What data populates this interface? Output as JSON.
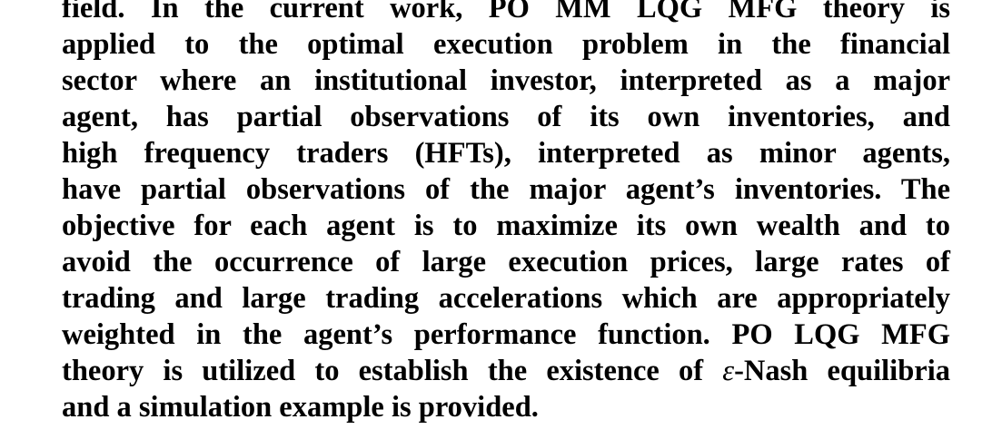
{
  "abstract": {
    "lines": [
      "field. In the current work, PO MM LQG MFG theory is",
      "applied to the optimal execution problem in the financial",
      "sector where an institutional investor, interpreted as a major",
      "agent, has partial observations of its own inventories, and",
      "high frequency traders (HFTs), interpreted as minor agents,",
      "have partial observations of the major agent’s inventories. The",
      "objective for each agent is to maximize its own wealth and to",
      "avoid the occurrence of large execution prices, large rates of",
      "trading and large trading accelerations which are appropriately",
      "weighted in the agent’s performance function. PO LQG MFG",
      "theory is utilized to establish the existence of ",
      "and a simulation example is provided."
    ],
    "epsilon_symbol": "ε",
    "epsilon_suffix": "-Nash equilibria"
  }
}
